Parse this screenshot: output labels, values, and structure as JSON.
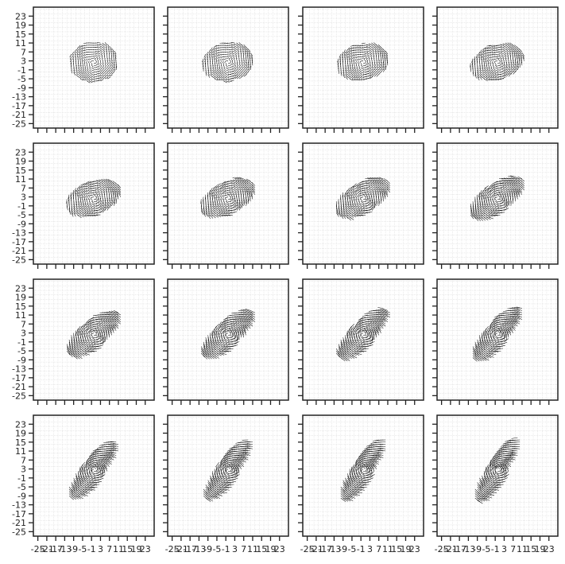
{
  "chart_data": {
    "type": "quiver",
    "layout": {
      "rows": 4,
      "cols": 4,
      "sharex": true,
      "sharey": true
    },
    "xlim": [
      -27,
      27
    ],
    "ylim": [
      -27,
      27
    ],
    "xticks": [
      -25,
      -21,
      -17,
      -13,
      -9,
      -5,
      -1,
      3,
      7,
      11,
      15,
      19,
      23
    ],
    "yticks": [
      -25,
      -21,
      -17,
      -13,
      -9,
      -5,
      -1,
      3,
      7,
      11,
      15,
      19,
      23
    ],
    "grid": true,
    "field_region": "ellipse centered near (0, 2), progressively sheared/rotated toward upper-left to lower-right across panels",
    "colors": {
      "arrows": "#111111",
      "frame": "#222222",
      "grid": "#d6d6d6"
    },
    "panels": [
      {
        "shear": 0.0
      },
      {
        "shear": 0.08
      },
      {
        "shear": 0.16
      },
      {
        "shear": 0.24
      },
      {
        "shear": 0.32
      },
      {
        "shear": 0.4
      },
      {
        "shear": 0.48
      },
      {
        "shear": 0.56
      },
      {
        "shear": 0.64
      },
      {
        "shear": 0.7
      },
      {
        "shear": 0.76
      },
      {
        "shear": 0.82
      },
      {
        "shear": 0.88
      },
      {
        "shear": 0.92
      },
      {
        "shear": 0.96
      },
      {
        "shear": 1.0
      }
    ]
  }
}
